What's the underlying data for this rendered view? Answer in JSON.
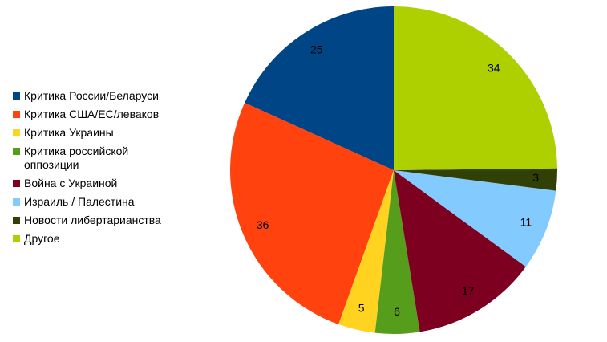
{
  "chart_data": {
    "type": "pie",
    "categories": [
      "Критика России/Беларуси",
      "Критика США/ЕС/леваков",
      "Критика Украины",
      "Критика российской оппозиции",
      "Война с Украиной",
      "Израиль / Палестина",
      "Новости либертарианства",
      "Другое"
    ],
    "values": [
      25,
      36,
      5,
      6,
      17,
      11,
      3,
      34
    ],
    "colors": [
      "#004586",
      "#ff420e",
      "#ffd320",
      "#579d1c",
      "#7e0021",
      "#83caff",
      "#314004",
      "#aecf00"
    ]
  }
}
